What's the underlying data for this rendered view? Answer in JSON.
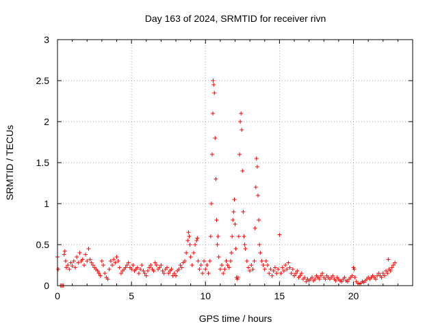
{
  "chart_data": {
    "type": "scatter",
    "title": "Day 163 of 2024, SRMTID for receiver rivn",
    "xlabel": "GPS time / hours",
    "ylabel": "SRMTID / TECUs",
    "xlim": [
      0,
      24
    ],
    "ylim": [
      0,
      3
    ],
    "xticks": [
      0,
      5,
      10,
      15,
      20
    ],
    "yticks": [
      0,
      0.5,
      1,
      1.5,
      2,
      2.5,
      3
    ],
    "xtick_labels": [
      "0",
      "5",
      "10",
      "15",
      "20"
    ],
    "ytick_labels": [
      "0",
      "0.5",
      "1",
      "1.5",
      "2",
      "2.5",
      "3"
    ],
    "grid": true,
    "marker": "+",
    "color": "#ff0000",
    "series": [
      {
        "name": "SRMTID",
        "points": [
          [
            0.0,
            0.35
          ],
          [
            0.05,
            0.2
          ],
          [
            0.2,
            0.0
          ],
          [
            0.3,
            0.0
          ],
          [
            0.4,
            0.0
          ],
          [
            0.45,
            0.38
          ],
          [
            0.5,
            0.42
          ],
          [
            0.55,
            0.3
          ],
          [
            0.6,
            0.22
          ],
          [
            0.7,
            0.25
          ],
          [
            0.8,
            0.2
          ],
          [
            0.9,
            0.28
          ],
          [
            1.0,
            0.24
          ],
          [
            1.1,
            0.3
          ],
          [
            1.2,
            0.22
          ],
          [
            1.3,
            0.35
          ],
          [
            1.4,
            0.28
          ],
          [
            1.5,
            0.4
          ],
          [
            1.6,
            0.3
          ],
          [
            1.7,
            0.32
          ],
          [
            1.8,
            0.25
          ],
          [
            1.9,
            0.38
          ],
          [
            2.0,
            0.3
          ],
          [
            2.1,
            0.45
          ],
          [
            2.2,
            0.32
          ],
          [
            2.3,
            0.28
          ],
          [
            2.4,
            0.25
          ],
          [
            2.5,
            0.22
          ],
          [
            2.6,
            0.2
          ],
          [
            2.7,
            0.18
          ],
          [
            2.8,
            0.15
          ],
          [
            2.9,
            0.12
          ],
          [
            3.0,
            0.3
          ],
          [
            3.1,
            0.25
          ],
          [
            3.2,
            0.15
          ],
          [
            3.3,
            0.1
          ],
          [
            3.4,
            0.08
          ],
          [
            3.5,
            0.2
          ],
          [
            3.6,
            0.3
          ],
          [
            3.7,
            0.25
          ],
          [
            3.8,
            0.32
          ],
          [
            3.9,
            0.28
          ],
          [
            4.0,
            0.35
          ],
          [
            4.1,
            0.3
          ],
          [
            4.2,
            0.22
          ],
          [
            4.3,
            0.15
          ],
          [
            4.4,
            0.18
          ],
          [
            4.5,
            0.2
          ],
          [
            4.6,
            0.22
          ],
          [
            4.7,
            0.25
          ],
          [
            4.8,
            0.28
          ],
          [
            4.9,
            0.22
          ],
          [
            5.0,
            0.2
          ],
          [
            5.1,
            0.25
          ],
          [
            5.2,
            0.18
          ],
          [
            5.3,
            0.2
          ],
          [
            5.4,
            0.22
          ],
          [
            5.5,
            0.15
          ],
          [
            5.6,
            0.2
          ],
          [
            5.7,
            0.25
          ],
          [
            5.8,
            0.18
          ],
          [
            5.9,
            0.15
          ],
          [
            6.0,
            0.12
          ],
          [
            6.1,
            0.18
          ],
          [
            6.2,
            0.22
          ],
          [
            6.3,
            0.25
          ],
          [
            6.4,
            0.2
          ],
          [
            6.5,
            0.18
          ],
          [
            6.6,
            0.28
          ],
          [
            6.7,
            0.25
          ],
          [
            6.8,
            0.2
          ],
          [
            6.9,
            0.22
          ],
          [
            7.0,
            0.25
          ],
          [
            7.1,
            0.18
          ],
          [
            7.2,
            0.15
          ],
          [
            7.3,
            0.2
          ],
          [
            7.4,
            0.22
          ],
          [
            7.5,
            0.15
          ],
          [
            7.6,
            0.18
          ],
          [
            7.7,
            0.2
          ],
          [
            7.8,
            0.12
          ],
          [
            7.9,
            0.15
          ],
          [
            8.0,
            0.12
          ],
          [
            8.1,
            0.18
          ],
          [
            8.2,
            0.2
          ],
          [
            8.3,
            0.25
          ],
          [
            8.4,
            0.22
          ],
          [
            8.5,
            0.28
          ],
          [
            8.6,
            0.3
          ],
          [
            8.7,
            0.4
          ],
          [
            8.8,
            0.55
          ],
          [
            8.85,
            0.65
          ],
          [
            8.9,
            0.6
          ],
          [
            8.95,
            0.5
          ],
          [
            9.0,
            0.35
          ],
          [
            9.1,
            0.25
          ],
          [
            9.2,
            0.4
          ],
          [
            9.3,
            0.5
          ],
          [
            9.4,
            0.55
          ],
          [
            9.45,
            0.58
          ],
          [
            9.5,
            0.3
          ],
          [
            9.6,
            0.2
          ],
          [
            9.7,
            0.25
          ],
          [
            9.8,
            0.15
          ],
          [
            9.9,
            0.3
          ],
          [
            10.0,
            0.2
          ],
          [
            10.1,
            0.25
          ],
          [
            10.2,
            0.15
          ],
          [
            10.3,
            0.3
          ],
          [
            10.35,
            0.6
          ],
          [
            10.4,
            1.0
          ],
          [
            10.45,
            1.6
          ],
          [
            10.5,
            2.1
          ],
          [
            10.52,
            2.5
          ],
          [
            10.55,
            2.45
          ],
          [
            10.6,
            2.35
          ],
          [
            10.65,
            1.8
          ],
          [
            10.7,
            1.3
          ],
          [
            10.75,
            0.8
          ],
          [
            10.8,
            0.5
          ],
          [
            10.85,
            0.6
          ],
          [
            10.9,
            0.35
          ],
          [
            11.0,
            0.2
          ],
          [
            11.1,
            0.25
          ],
          [
            11.2,
            0.15
          ],
          [
            11.3,
            0.2
          ],
          [
            11.4,
            0.3
          ],
          [
            11.5,
            0.25
          ],
          [
            11.6,
            0.22
          ],
          [
            11.7,
            0.3
          ],
          [
            11.75,
            0.4
          ],
          [
            11.8,
            0.6
          ],
          [
            11.85,
            0.8
          ],
          [
            11.9,
            0.9
          ],
          [
            11.95,
            1.05
          ],
          [
            12.0,
            0.75
          ],
          [
            12.05,
            0.45
          ],
          [
            12.1,
            0.1
          ],
          [
            12.15,
            0.08
          ],
          [
            12.2,
            0.1
          ],
          [
            12.25,
            0.6
          ],
          [
            12.3,
            1.6
          ],
          [
            12.35,
            2.0
          ],
          [
            12.4,
            2.1
          ],
          [
            12.45,
            1.9
          ],
          [
            12.5,
            1.4
          ],
          [
            12.55,
            0.9
          ],
          [
            12.6,
            0.6
          ],
          [
            12.65,
            0.5
          ],
          [
            12.7,
            0.45
          ],
          [
            12.8,
            0.3
          ],
          [
            12.9,
            0.22
          ],
          [
            13.0,
            0.18
          ],
          [
            13.1,
            0.25
          ],
          [
            13.2,
            0.2
          ],
          [
            13.3,
            0.3
          ],
          [
            13.35,
            0.7
          ],
          [
            13.4,
            1.2
          ],
          [
            13.45,
            1.55
          ],
          [
            13.5,
            1.45
          ],
          [
            13.55,
            1.1
          ],
          [
            13.6,
            0.8
          ],
          [
            13.65,
            0.5
          ],
          [
            13.7,
            0.4
          ],
          [
            13.8,
            0.3
          ],
          [
            13.9,
            0.25
          ],
          [
            14.0,
            0.2
          ],
          [
            14.1,
            0.3
          ],
          [
            14.2,
            0.25
          ],
          [
            14.3,
            0.15
          ],
          [
            14.4,
            0.2
          ],
          [
            14.5,
            0.12
          ],
          [
            14.6,
            0.18
          ],
          [
            14.7,
            0.22
          ],
          [
            14.8,
            0.15
          ],
          [
            14.9,
            0.2
          ],
          [
            15.0,
            0.62
          ],
          [
            15.1,
            0.15
          ],
          [
            15.2,
            0.22
          ],
          [
            15.3,
            0.18
          ],
          [
            15.4,
            0.25
          ],
          [
            15.5,
            0.2
          ],
          [
            15.6,
            0.28
          ],
          [
            15.7,
            0.22
          ],
          [
            15.8,
            0.15
          ],
          [
            15.9,
            0.2
          ],
          [
            16.0,
            0.12
          ],
          [
            16.1,
            0.15
          ],
          [
            16.2,
            0.18
          ],
          [
            16.3,
            0.1
          ],
          [
            16.4,
            0.12
          ],
          [
            16.5,
            0.15
          ],
          [
            16.6,
            0.08
          ],
          [
            16.7,
            0.1
          ],
          [
            16.8,
            0.05
          ],
          [
            16.9,
            0.08
          ],
          [
            17.0,
            0.06
          ],
          [
            17.1,
            0.08
          ],
          [
            17.2,
            0.1
          ],
          [
            17.3,
            0.06
          ],
          [
            17.4,
            0.08
          ],
          [
            17.5,
            0.12
          ],
          [
            17.6,
            0.1
          ],
          [
            17.7,
            0.08
          ],
          [
            17.8,
            0.12
          ],
          [
            17.9,
            0.15
          ],
          [
            18.0,
            0.1
          ],
          [
            18.1,
            0.08
          ],
          [
            18.2,
            0.12
          ],
          [
            18.3,
            0.1
          ],
          [
            18.4,
            0.08
          ],
          [
            18.5,
            0.1
          ],
          [
            18.6,
            0.12
          ],
          [
            18.7,
            0.08
          ],
          [
            18.8,
            0.06
          ],
          [
            18.9,
            0.1
          ],
          [
            19.0,
            0.08
          ],
          [
            19.1,
            0.06
          ],
          [
            19.2,
            0.05
          ],
          [
            19.3,
            0.08
          ],
          [
            19.4,
            0.1
          ],
          [
            19.5,
            0.06
          ],
          [
            19.6,
            0.05
          ],
          [
            19.7,
            0.08
          ],
          [
            19.8,
            0.1
          ],
          [
            19.9,
            0.12
          ],
          [
            20.0,
            0.22
          ],
          [
            20.05,
            0.2
          ],
          [
            20.1,
            0.1
          ],
          [
            20.2,
            0.05
          ],
          [
            20.3,
            0.03
          ],
          [
            20.4,
            0.02
          ],
          [
            20.5,
            0.03
          ],
          [
            20.6,
            0.05
          ],
          [
            20.7,
            0.04
          ],
          [
            20.8,
            0.06
          ],
          [
            20.9,
            0.08
          ],
          [
            21.0,
            0.1
          ],
          [
            21.1,
            0.08
          ],
          [
            21.2,
            0.1
          ],
          [
            21.3,
            0.12
          ],
          [
            21.4,
            0.1
          ],
          [
            21.5,
            0.08
          ],
          [
            21.6,
            0.12
          ],
          [
            21.7,
            0.15
          ],
          [
            21.8,
            0.12
          ],
          [
            21.9,
            0.1
          ],
          [
            22.0,
            0.15
          ],
          [
            22.1,
            0.12
          ],
          [
            22.2,
            0.18
          ],
          [
            22.3,
            0.15
          ],
          [
            22.35,
            0.32
          ],
          [
            22.4,
            0.2
          ],
          [
            22.5,
            0.18
          ],
          [
            22.6,
            0.22
          ],
          [
            22.7,
            0.25
          ],
          [
            22.8,
            0.28
          ]
        ]
      }
    ]
  }
}
